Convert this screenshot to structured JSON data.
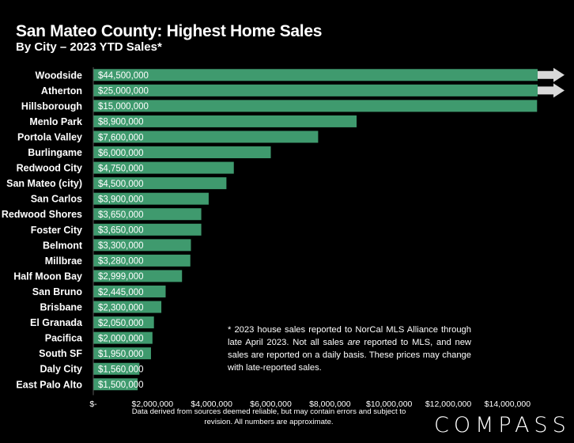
{
  "chart_data": {
    "type": "bar",
    "orientation": "horizontal",
    "title": "San Mateo County: Highest Home Sales",
    "subtitle": "By City – 2023 YTD Sales*",
    "categories": [
      "Woodside",
      "Atherton",
      "Hillsborough",
      "Menlo Park",
      "Portola Valley",
      "Burlingame",
      "Redwood City",
      "San Mateo (city)",
      "San Carlos",
      "Redwood Shores",
      "Foster City",
      "Belmont",
      "Millbrae",
      "Half Moon Bay",
      "San Bruno",
      "Brisbane",
      "El Granada",
      "Pacifica",
      "South SF",
      "Daly City",
      "East Palo Alto"
    ],
    "values": [
      44500000,
      25000000,
      15000000,
      8900000,
      7600000,
      6000000,
      4750000,
      4500000,
      3900000,
      3650000,
      3650000,
      3300000,
      3280000,
      2999000,
      2445000,
      2300000,
      2050000,
      2000000,
      1950000,
      1560000,
      1500000
    ],
    "value_labels": [
      "$44,500,000",
      "$25,000,000",
      "$15,000,000",
      "$8,900,000",
      "$7,600,000",
      "$6,000,000",
      "$4,750,000",
      "$4,500,000",
      "$3,900,000",
      "$3,650,000",
      "$3,650,000",
      "$3,300,000",
      "$3,280,000",
      "$2,999,000",
      "$2,445,000",
      "$2,300,000",
      "$2,050,000",
      "$2,000,000",
      "$1,950,000",
      "$1,560,000",
      "$1,500,000"
    ],
    "xlim": [
      0,
      15500000
    ],
    "xticks": [
      0,
      2000000,
      4000000,
      6000000,
      8000000,
      10000000,
      12000000,
      14000000
    ],
    "xtick_labels": [
      "$-",
      "$2,000,000",
      "$4,000,000",
      "$6,000,000",
      "$8,000,000",
      "$10,000,000",
      "$12,000,000",
      "$14,000,000"
    ],
    "overflow_categories": [
      "Woodside",
      "Atherton"
    ],
    "grid": false,
    "bar_color": "#3f9a6e"
  },
  "footnote": "* 2023 house sales reported to NorCal MLS Alliance through late April 2023. Not all sales are reported to MLS, and new sales are reported on a daily basis. These prices may change with late-reported sales.",
  "source_note": "Data derived from sources deemed reliable, but may contain errors and subject to revision. All numbers are approximate.",
  "logo": "COMPASS"
}
